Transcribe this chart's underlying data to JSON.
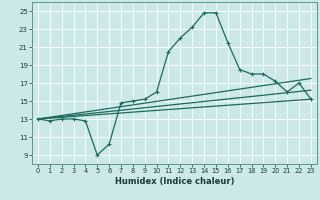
{
  "xlabel": "Humidex (Indice chaleur)",
  "background_color": "#cce8e8",
  "grid_color": "#b0d0d0",
  "line_color": "#1a6b5e",
  "xlim": [
    -0.5,
    23.5
  ],
  "ylim": [
    8,
    26
  ],
  "yticks": [
    9,
    11,
    13,
    15,
    17,
    19,
    21,
    23,
    25
  ],
  "xticks": [
    0,
    1,
    2,
    3,
    4,
    5,
    6,
    7,
    8,
    9,
    10,
    11,
    12,
    13,
    14,
    15,
    16,
    17,
    18,
    19,
    20,
    21,
    22,
    23
  ],
  "line1_x": [
    0,
    1,
    2,
    3,
    4,
    5,
    6,
    7,
    8,
    9,
    10,
    11,
    12,
    13,
    14,
    15,
    16,
    17,
    18,
    19,
    20,
    21,
    22,
    23
  ],
  "line1_y": [
    13,
    12.8,
    13,
    13,
    12.8,
    9,
    10.2,
    14.8,
    15,
    15.2,
    16,
    20.5,
    22,
    23.2,
    24.8,
    24.8,
    21.5,
    18.5,
    18,
    18,
    17.2,
    16,
    17,
    15.2
  ],
  "line2_x": [
    0,
    23
  ],
  "line2_y": [
    13,
    15.2
  ],
  "line3_x": [
    0,
    23
  ],
  "line3_y": [
    13,
    16.2
  ],
  "line4_x": [
    0,
    23
  ],
  "line4_y": [
    13,
    17.5
  ],
  "marker_size": 3,
  "line_width": 0.9
}
